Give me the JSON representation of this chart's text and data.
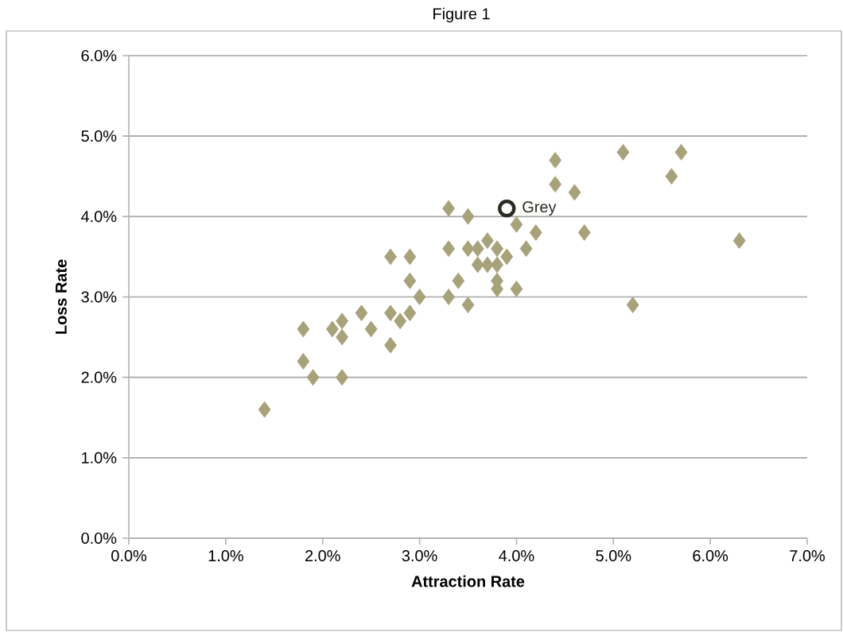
{
  "chart_data": {
    "type": "scatter",
    "title": "Figure 1",
    "xlabel": "Attraction Rate",
    "ylabel": "Loss Rate",
    "xlim": [
      0,
      7
    ],
    "ylim": [
      0,
      6
    ],
    "xticks": [
      {
        "value": 0,
        "label": "0.0%"
      },
      {
        "value": 1,
        "label": "1.0%"
      },
      {
        "value": 2,
        "label": "2.0%"
      },
      {
        "value": 3,
        "label": "3.0%"
      },
      {
        "value": 4,
        "label": "4.0%"
      },
      {
        "value": 5,
        "label": "5.0%"
      },
      {
        "value": 6,
        "label": "6.0%"
      },
      {
        "value": 7,
        "label": "7.0%"
      }
    ],
    "yticks": [
      {
        "value": 0,
        "label": "0.0%"
      },
      {
        "value": 1,
        "label": "1.0%"
      },
      {
        "value": 2,
        "label": "2.0%"
      },
      {
        "value": 3,
        "label": "3.0%"
      },
      {
        "value": 4,
        "label": "4.0%"
      },
      {
        "value": 5,
        "label": "5.0%"
      },
      {
        "value": 6,
        "label": "6.0%"
      }
    ],
    "grid": "y",
    "legend": false,
    "series": [
      {
        "color": "#a8a27a",
        "marker": "diamond",
        "x": [
          1.4,
          1.8,
          1.8,
          1.9,
          2.2,
          2.1,
          2.2,
          2.2,
          2.4,
          2.5,
          2.7,
          2.7,
          2.7,
          2.8,
          2.9,
          2.9,
          2.9,
          3.0,
          3.3,
          3.3,
          3.3,
          3.4,
          3.5,
          3.5,
          3.5,
          3.6,
          3.6,
          3.7,
          3.7,
          3.8,
          3.8,
          3.8,
          3.8,
          3.9,
          4.0,
          4.0,
          4.1,
          4.2,
          4.4,
          4.4,
          4.6,
          4.7,
          5.1,
          5.2,
          5.6,
          5.7,
          6.3
        ],
        "values": [
          1.6,
          2.6,
          2.2,
          2.0,
          2.0,
          2.6,
          2.7,
          2.5,
          2.8,
          2.6,
          3.5,
          2.8,
          2.4,
          2.7,
          3.5,
          3.2,
          2.8,
          3.0,
          4.1,
          3.6,
          3.0,
          3.2,
          4.0,
          3.6,
          2.9,
          3.6,
          3.4,
          3.7,
          3.4,
          3.6,
          3.4,
          3.2,
          3.1,
          3.5,
          3.9,
          3.1,
          3.6,
          3.8,
          4.7,
          4.4,
          4.3,
          3.8,
          4.8,
          2.9,
          4.5,
          4.8,
          3.7
        ]
      },
      {
        "name": "Grey",
        "color": "#2b2a22",
        "marker": "circle",
        "x": [
          3.9
        ],
        "values": [
          4.1
        ]
      }
    ]
  }
}
